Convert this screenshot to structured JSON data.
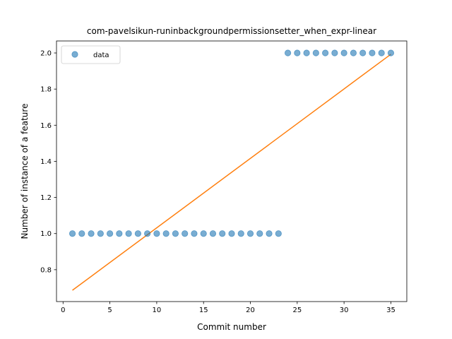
{
  "chart_data": {
    "type": "scatter",
    "title": "com-pavelsikun-runinbackgroundpermissionsetter_when_expr-linear",
    "xlabel": "Commit number",
    "ylabel": "Number of instance of a feature",
    "xlim": [
      -0.7,
      36.7
    ],
    "ylim": [
      0.6235,
      2.0665
    ],
    "x_ticks": [
      0,
      5,
      10,
      15,
      20,
      25,
      30,
      35
    ],
    "y_ticks": [
      0.8,
      1.0,
      1.2,
      1.4,
      1.6,
      1.8,
      2.0
    ],
    "legend_position": "upper left",
    "series": [
      {
        "name": "data",
        "kind": "scatter",
        "color": "#1f77b4",
        "x": [
          1,
          2,
          3,
          4,
          5,
          6,
          7,
          8,
          9,
          10,
          11,
          12,
          13,
          14,
          15,
          16,
          17,
          18,
          19,
          20,
          21,
          22,
          23,
          24,
          25,
          26,
          27,
          28,
          29,
          30,
          31,
          32,
          33,
          34,
          35
        ],
        "y": [
          1,
          1,
          1,
          1,
          1,
          1,
          1,
          1,
          1,
          1,
          1,
          1,
          1,
          1,
          1,
          1,
          1,
          1,
          1,
          1,
          1,
          1,
          1,
          2,
          2,
          2,
          2,
          2,
          2,
          2,
          2,
          2,
          2,
          2,
          2
        ]
      },
      {
        "kind": "line",
        "color": "#ff7f0e",
        "x": [
          1,
          35
        ],
        "y": [
          0.686,
          1.993
        ]
      }
    ]
  }
}
